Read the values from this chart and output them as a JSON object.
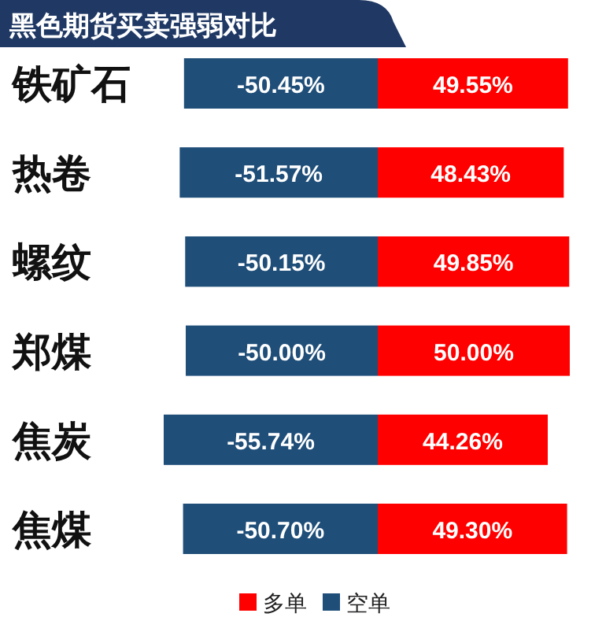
{
  "chart_data": {
    "type": "bar",
    "orientation": "horizontal",
    "stacked": true,
    "title": "黑色期货买卖强弱对比",
    "categories": [
      "铁矿石",
      "热卷",
      "螺纹",
      "郑煤",
      "焦炭",
      "焦煤"
    ],
    "series": [
      {
        "name": "多单",
        "color": "#ff0000",
        "values": [
          49.55,
          48.43,
          49.85,
          50.0,
          44.26,
          49.3
        ],
        "value_labels": [
          "49.55%",
          "48.43%",
          "49.85%",
          "50.00%",
          "44.26%",
          "49.30%"
        ]
      },
      {
        "name": "空单",
        "color": "#1f4e79",
        "values": [
          -50.45,
          -51.57,
          -50.15,
          -50.0,
          -55.74,
          -50.7
        ],
        "value_labels": [
          "-50.45%",
          "-51.57%",
          "-50.15%",
          "-50.00%",
          "-55.74%",
          "-50.70%"
        ]
      }
    ],
    "legend": "bottom"
  }
}
